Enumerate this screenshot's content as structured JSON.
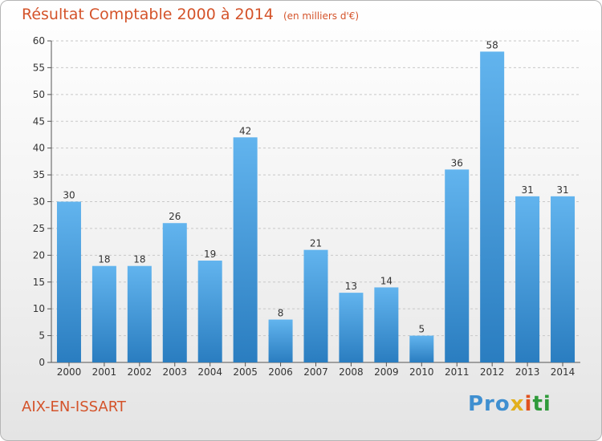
{
  "title": "Résultat Comptable 2000 à 2014",
  "subtitle": "(en milliers d'€)",
  "commune": "AIX-EN-ISSART",
  "logo": {
    "part1": "Pro",
    "part2": "x",
    "part3": "i",
    "part4": "ti"
  },
  "colors": {
    "title": "#d4532a",
    "bar_light": "#62b4ee",
    "bar_dark": "#2a7dc0",
    "grid": "#c8c8c8"
  },
  "chart_data": {
    "type": "bar",
    "title": "Résultat Comptable 2000 à 2014",
    "subtitle": "(en milliers d'€)",
    "xlabel": "",
    "ylabel": "",
    "ylim": [
      0,
      60
    ],
    "yticks": [
      0,
      5,
      10,
      15,
      20,
      25,
      30,
      35,
      40,
      45,
      50,
      55,
      60
    ],
    "grid": true,
    "categories": [
      "2000",
      "2001",
      "2002",
      "2003",
      "2004",
      "2005",
      "2006",
      "2007",
      "2008",
      "2009",
      "2010",
      "2011",
      "2012",
      "2013",
      "2014"
    ],
    "values": [
      30,
      18,
      18,
      26,
      19,
      42,
      8,
      21,
      13,
      14,
      5,
      36,
      58,
      31,
      31
    ]
  }
}
